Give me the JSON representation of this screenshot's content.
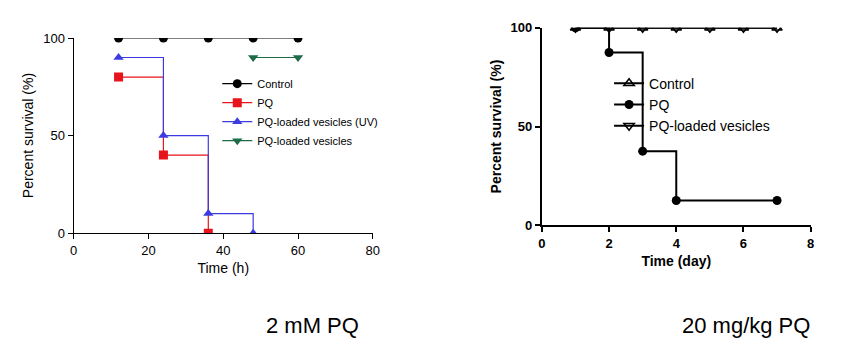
{
  "chart_data": [
    {
      "type": "line",
      "x_label": "Time (h)",
      "y_label": "Percent survival (%)",
      "xlim": [
        0,
        80
      ],
      "xticks": [
        0,
        20,
        40,
        60,
        80
      ],
      "ylim": [
        0,
        100
      ],
      "yticks": [
        0,
        50,
        100
      ],
      "grid": false,
      "legend": "center",
      "annotation": "2 mM PQ",
      "series": [
        {
          "name": "Control",
          "color": "#000000",
          "marker": "circle",
          "line_style": "step",
          "x": [
            12,
            24,
            36,
            48,
            60
          ],
          "values": [
            100,
            100,
            100,
            100,
            100
          ]
        },
        {
          "name": "PQ",
          "color": "#e8141b",
          "marker": "square",
          "line_style": "step",
          "x": [
            12,
            24,
            36
          ],
          "values": [
            80,
            40,
            0
          ]
        },
        {
          "name": "PQ-loaded vesicles (UV)",
          "color": "#3b3be0",
          "marker": "triangle-up",
          "line_style": "step",
          "x": [
            12,
            24,
            36,
            48
          ],
          "values": [
            90,
            50,
            10,
            0
          ]
        },
        {
          "name": "PQ-loaded vesicles",
          "color": "#1e6b48",
          "marker": "triangle-down",
          "line_style": "step",
          "x": [
            48,
            60
          ],
          "values": [
            90,
            90
          ]
        }
      ]
    },
    {
      "type": "line",
      "x_label": "Time (day)",
      "y_label": "Percent survival (%)",
      "xlim": [
        0,
        8
      ],
      "xticks": [
        0,
        2,
        4,
        6,
        8
      ],
      "ylim": [
        0,
        100
      ],
      "yticks": [
        0,
        50,
        100
      ],
      "grid": false,
      "legend": "upper center",
      "annotation": "20 mg/kg PQ",
      "series": [
        {
          "name": "Control",
          "color": "#000000",
          "marker": "triangle-up-open",
          "line_style": "step",
          "x": [
            1,
            2,
            3,
            4,
            5,
            6,
            7
          ],
          "values": [
            100,
            100,
            100,
            100,
            100,
            100,
            100
          ]
        },
        {
          "name": "PQ",
          "color": "#000000",
          "marker": "circle",
          "line_style": "step",
          "x": [
            1,
            2,
            3,
            4,
            7
          ],
          "values": [
            100,
            87.5,
            37.5,
            12.5,
            12.5
          ]
        },
        {
          "name": "PQ-loaded vesicles",
          "color": "#000000",
          "marker": "triangle-down-open",
          "line_style": "step",
          "x": [
            1,
            2,
            3,
            4,
            5,
            6,
            7
          ],
          "values": [
            100,
            100,
            100,
            100,
            100,
            100,
            100
          ]
        }
      ]
    }
  ]
}
